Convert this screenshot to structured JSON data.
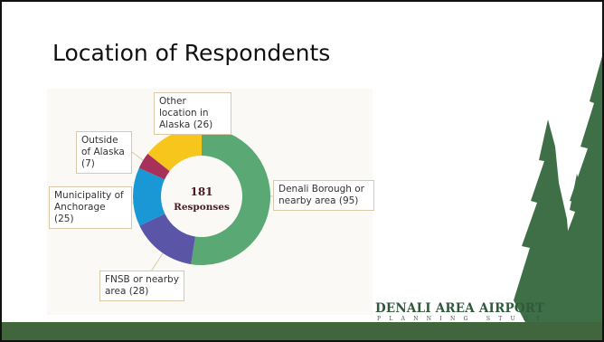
{
  "chart_data": {
    "type": "donut",
    "title": "Location of Respondents",
    "categories": [
      "Denali Borough or nearby area",
      "FNSB or nearby area",
      "Municipality of Anchorage",
      "Outside of Alaska",
      "Other location in Alaska"
    ],
    "values": [
      95,
      28,
      25,
      7,
      26
    ],
    "value_labels": [
      "(95)",
      "(28)",
      "(25)",
      "(7)",
      "(26)"
    ],
    "colors": [
      "#5aa874",
      "#5b55a8",
      "#1a98d5",
      "#a8315c",
      "#f6c61d"
    ],
    "center_value": 181,
    "center_label": "Responses"
  },
  "logo": {
    "name": "DENALI AREA AIRPORT",
    "subtitle": "PLANNING STUDY"
  }
}
